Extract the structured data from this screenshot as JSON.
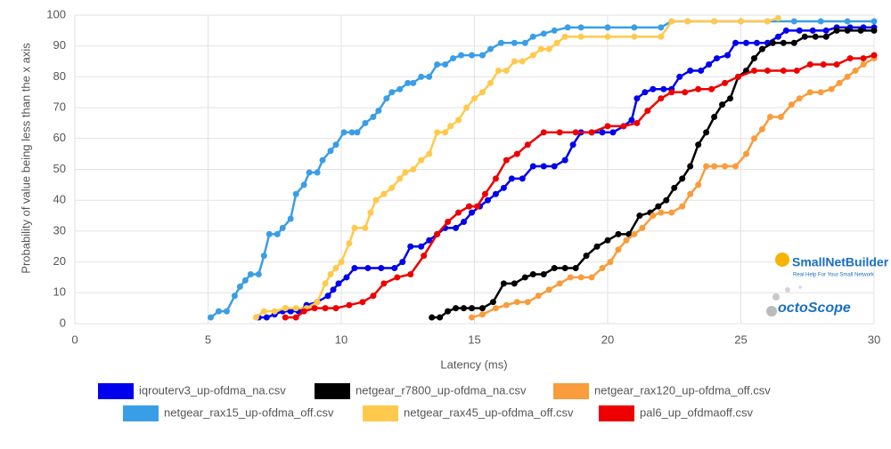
{
  "chart_data": {
    "type": "line",
    "xlabel": "Latency (ms)",
    "ylabel": "Probability of value being less than the x axis",
    "xlim": [
      0,
      30
    ],
    "xticks": [
      0,
      5,
      10,
      15,
      20,
      25,
      30
    ],
    "ylim": [
      0,
      100
    ],
    "yticks": [
      0,
      10,
      20,
      30,
      40,
      50,
      60,
      70,
      80,
      90,
      100
    ],
    "grid": true,
    "legend": "bottom",
    "annotations": [
      "SmallNetBuilder",
      "Real Help For Your Small Network",
      "octoScope"
    ],
    "series": [
      {
        "name": "iqrouterv3_up-ofdma_na.csv",
        "color": "#0000ee",
        "x": [
          6.9,
          7.2,
          7.5,
          7.8,
          8.1,
          8.4,
          8.7,
          9.1,
          9.5,
          9.7,
          9.9,
          10.2,
          10.5,
          11,
          11.5,
          12,
          12.3,
          12.6,
          13,
          13.3,
          13.6,
          13.9,
          14.3,
          14.6,
          14.9,
          15.2,
          15.5,
          15.8,
          16.1,
          16.4,
          16.8,
          17.2,
          17.6,
          18,
          18.4,
          18.7,
          19,
          19.4,
          19.8,
          20.2,
          20.6,
          20.9,
          21.1,
          21.4,
          21.7,
          22.1,
          22.4,
          22.7,
          23.1,
          23.5,
          23.8,
          24.1,
          24.5,
          24.8,
          25.2,
          25.6,
          26,
          26.4,
          26.7,
          27.2,
          27.7,
          28.2,
          28.6,
          29.1,
          29.6,
          30
        ],
        "values": [
          2,
          2,
          3,
          4,
          4,
          4,
          6,
          7,
          9,
          11,
          13,
          15,
          18,
          18,
          18,
          18,
          20,
          25,
          25,
          27,
          29,
          31,
          31,
          33,
          36,
          38,
          40,
          42,
          44,
          47,
          47,
          51,
          51,
          51,
          53,
          58,
          62,
          62,
          62,
          62,
          64,
          66,
          73,
          75,
          76,
          76,
          76,
          80,
          82,
          82,
          84,
          86,
          87,
          91,
          91,
          91,
          91,
          93,
          95,
          95,
          95,
          95,
          96,
          96,
          96,
          96
        ]
      },
      {
        "name": "netgear_r7800_up-ofdma_na.csv",
        "color": "#000000",
        "x": [
          13.4,
          13.7,
          14,
          14.3,
          14.6,
          14.9,
          15.3,
          15.7,
          16.1,
          16.5,
          16.9,
          17.2,
          17.6,
          18,
          18.4,
          18.8,
          19.2,
          19.6,
          20,
          20.4,
          20.8,
          21.2,
          21.6,
          21.9,
          22.2,
          22.5,
          22.8,
          23.1,
          23.4,
          23.7,
          24,
          24.3,
          24.6,
          24.9,
          25.2,
          25.5,
          25.8,
          26.2,
          26.6,
          27,
          27.4,
          27.8,
          28.2,
          28.6,
          29,
          29.5,
          30
        ],
        "values": [
          2,
          2,
          4,
          5,
          5,
          5,
          5,
          7,
          13,
          13,
          15,
          16,
          16,
          18,
          18,
          18,
          22,
          25,
          27,
          29,
          29,
          35,
          36,
          38,
          40,
          44,
          47,
          51,
          58,
          62,
          67,
          71,
          73,
          80,
          82,
          86,
          89,
          91,
          91,
          91,
          93,
          93,
          93,
          95,
          95,
          95,
          95
        ]
      },
      {
        "name": "netgear_rax120_up-ofdma_off.csv",
        "color": "#f89c3c",
        "x": [
          14.9,
          15.3,
          15.8,
          16.2,
          16.6,
          17,
          17.4,
          17.8,
          18.2,
          18.6,
          19,
          19.4,
          19.8,
          20.1,
          20.4,
          20.7,
          21,
          21.3,
          21.7,
          22,
          22.4,
          22.8,
          23.1,
          23.4,
          23.7,
          24,
          24.4,
          24.8,
          25.2,
          25.5,
          25.8,
          26.1,
          26.5,
          26.9,
          27.2,
          27.6,
          28,
          28.4,
          28.7,
          29,
          29.3,
          29.6,
          30
        ],
        "values": [
          2,
          3,
          5,
          6,
          7,
          7,
          9,
          11,
          13,
          15,
          15,
          15,
          18,
          20,
          24,
          27,
          29,
          31,
          35,
          36,
          36,
          38,
          42,
          45,
          51,
          51,
          51,
          51,
          55,
          60,
          63,
          67,
          67,
          71,
          73,
          75,
          75,
          76,
          78,
          80,
          82,
          84,
          86
        ]
      },
      {
        "name": "netgear_rax15_up-ofdma_off.csv",
        "color": "#3a9ee6",
        "x": [
          5.1,
          5.4,
          5.7,
          6,
          6.2,
          6.4,
          6.6,
          6.9,
          7.1,
          7.3,
          7.6,
          7.8,
          8.1,
          8.3,
          8.6,
          8.8,
          9.1,
          9.3,
          9.6,
          9.8,
          10.1,
          10.4,
          10.6,
          10.9,
          11.2,
          11.4,
          11.7,
          11.9,
          12.2,
          12.5,
          12.7,
          13,
          13.3,
          13.6,
          13.9,
          14.2,
          14.5,
          14.9,
          15.3,
          15.6,
          16,
          16.5,
          16.9,
          17.2,
          17.6,
          18,
          18.5,
          19,
          20,
          21,
          22,
          22.4,
          23,
          24,
          25,
          26,
          27,
          28,
          29,
          30
        ],
        "values": [
          2,
          4,
          4,
          9,
          12,
          14,
          16,
          16,
          22,
          29,
          29,
          31,
          34,
          42,
          45,
          49,
          49,
          53,
          56,
          58,
          62,
          62,
          62,
          65,
          67,
          69,
          73,
          75,
          76,
          78,
          78,
          80,
          80,
          84,
          84,
          86,
          87,
          87,
          87,
          89,
          91,
          91,
          91,
          93,
          94,
          95,
          96,
          96,
          96,
          96,
          96,
          98,
          98,
          98,
          98,
          98,
          98,
          98,
          98,
          98
        ]
      },
      {
        "name": "netgear_rax45_up-ofdma_off.csv",
        "color": "#ffc94d",
        "x": [
          6.8,
          7.1,
          7.5,
          7.9,
          8.3,
          8.7,
          9.1,
          9.4,
          9.6,
          9.8,
          10,
          10.3,
          10.5,
          10.9,
          11.1,
          11.3,
          11.6,
          11.9,
          12.2,
          12.4,
          12.7,
          13,
          13.3,
          13.6,
          13.9,
          14.1,
          14.4,
          14.7,
          15,
          15.3,
          15.6,
          15.9,
          16.2,
          16.5,
          16.8,
          17.2,
          17.5,
          17.8,
          18.1,
          18.4,
          19,
          20,
          21,
          22,
          22.4,
          23,
          24,
          25,
          26,
          26.4
        ],
        "values": [
          2,
          4,
          4,
          5,
          5,
          5,
          7,
          13,
          16,
          18,
          20,
          26,
          31,
          31,
          36,
          40,
          42,
          44,
          47,
          49,
          50,
          53,
          55,
          62,
          62,
          64,
          66,
          70,
          73,
          75,
          78,
          82,
          82,
          85,
          85,
          87,
          89,
          89,
          91,
          93,
          93,
          93,
          93,
          93,
          98,
          98,
          98,
          98,
          98,
          99
        ]
      },
      {
        "name": "pal6_up_ofdmaoff.csv",
        "color": "#ee0000",
        "x": [
          7.9,
          8.3,
          8.6,
          9,
          9.4,
          9.8,
          10.3,
          10.8,
          11.2,
          11.6,
          12.1,
          12.6,
          13.1,
          13.6,
          14,
          14.4,
          14.8,
          15.1,
          15.4,
          15.8,
          16.2,
          16.6,
          17,
          17.6,
          18.2,
          18.8,
          19.4,
          20,
          20.6,
          21.1,
          21.5,
          22,
          22.4,
          22.9,
          23.4,
          23.9,
          24.4,
          24.9,
          25.5,
          26,
          26.6,
          27.1,
          27.6,
          28.1,
          28.6,
          29.1,
          29.6,
          30
        ],
        "values": [
          2,
          2,
          4,
          5,
          5,
          5,
          6,
          7,
          9,
          13,
          15,
          16,
          22,
          29,
          33,
          36,
          38,
          38,
          42,
          47,
          53,
          55,
          58,
          62,
          62,
          62,
          62,
          64,
          64,
          65,
          69,
          73,
          75,
          75,
          76,
          76,
          78,
          80,
          82,
          82,
          82,
          82,
          84,
          84,
          84,
          86,
          86,
          87
        ]
      }
    ]
  }
}
